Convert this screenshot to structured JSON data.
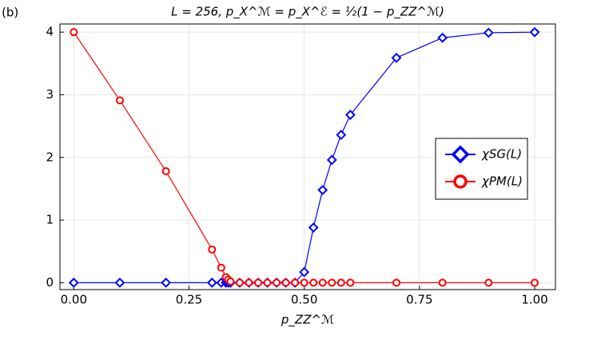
{
  "chart_data": {
    "type": "line",
    "panel_label": "(b)",
    "title": "L = 256, p_X^ℳ = p_X^ℰ = ½(1 − p_ZZ^ℳ)",
    "x_label": "p_ZZ^ℳ",
    "x": [
      0,
      0.1,
      0.2,
      0.3,
      0.32,
      0.33,
      0.335,
      0.34,
      0.36,
      0.38,
      0.4,
      0.42,
      0.44,
      0.46,
      0.48,
      0.5,
      0.52,
      0.54,
      0.56,
      0.58,
      0.6,
      0.7,
      0.8,
      0.9,
      1.0
    ],
    "series": [
      {
        "name": "χSG(L)",
        "color": "#0000ff",
        "marker": "diamond",
        "values": [
          0,
          0,
          0,
          0,
          0,
          0,
          0,
          0,
          0,
          0,
          0,
          0,
          0,
          0,
          0,
          0.17,
          0.88,
          1.48,
          1.96,
          2.36,
          2.68,
          3.59,
          3.91,
          3.99,
          4.0
        ]
      },
      {
        "name": "χPM(L)",
        "color": "#ff0000",
        "marker": "circle",
        "values": [
          4.0,
          2.91,
          1.78,
          0.53,
          0.24,
          0.09,
          0.05,
          0.02,
          0,
          0,
          0,
          0,
          0,
          0,
          0,
          0,
          0,
          0,
          0,
          0,
          0,
          0,
          0,
          0,
          0
        ]
      }
    ],
    "xlim": [
      -0.03,
      1.045
    ],
    "ylim": [
      -0.11,
      4.13
    ],
    "xticks": [
      {
        "value": 0,
        "label": "0.00"
      },
      {
        "value": 0.25,
        "label": "0.25"
      },
      {
        "value": 0.5,
        "label": "0.50"
      },
      {
        "value": 0.75,
        "label": "0.75"
      },
      {
        "value": 1,
        "label": "1.00"
      }
    ],
    "yticks": [
      0,
      1,
      2,
      3,
      4
    ],
    "grid": true,
    "legend": "right"
  }
}
